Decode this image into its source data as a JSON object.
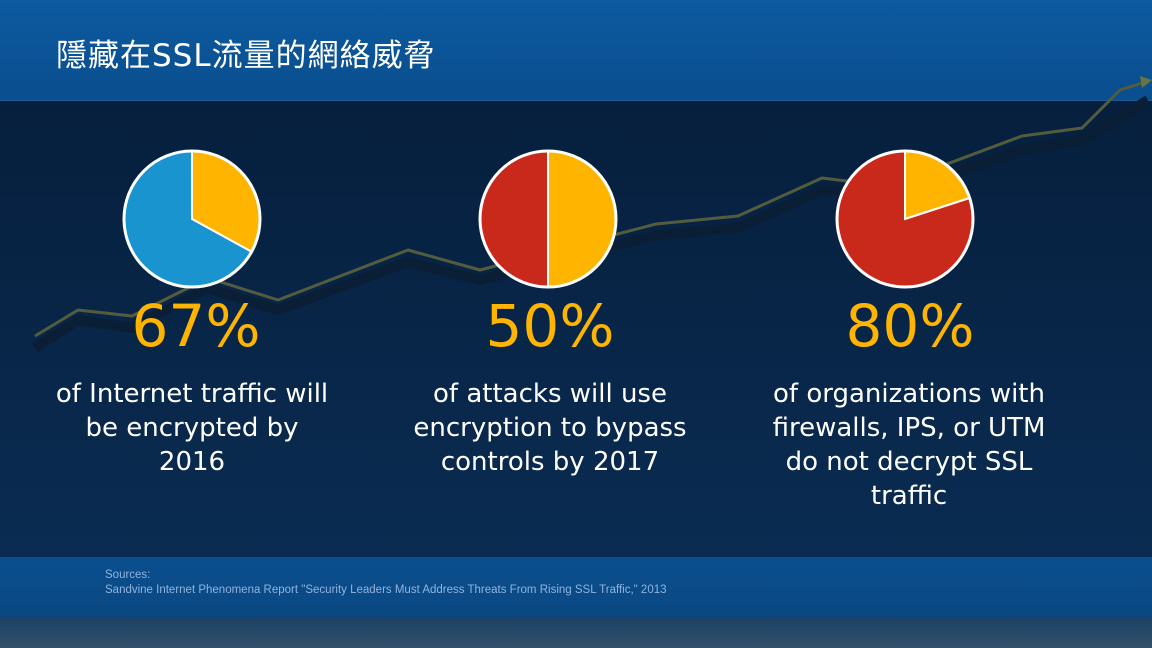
{
  "slide": {
    "title": "隱藏在SSL流量的網絡威脅"
  },
  "colors": {
    "blue": "#1a94cf",
    "yellow": "#ffb400",
    "red": "#c8291a",
    "trend_line": "#4f5a3e"
  },
  "chart_data": [
    {
      "type": "pie",
      "stat_label": "67%",
      "description": "of Internet traffic will be encrypted by 2016",
      "slices": [
        {
          "value": 67,
          "color": "#1a94cf"
        },
        {
          "value": 33,
          "color": "#ffb400"
        }
      ]
    },
    {
      "type": "pie",
      "stat_label": "50%",
      "description": "of attacks will use encryption to bypass controls by 2017",
      "slices": [
        {
          "value": 50,
          "color": "#c8291a"
        },
        {
          "value": 50,
          "color": "#ffb400"
        }
      ]
    },
    {
      "type": "pie",
      "stat_label": "80%",
      "description": "of organizations with firewalls, IPS, or UTM do not decrypt SSL traffic",
      "slices": [
        {
          "value": 80,
          "color": "#c8291a"
        },
        {
          "value": 20,
          "color": "#ffb400"
        }
      ]
    }
  ],
  "sources": {
    "heading": "Sources:",
    "text": "Sandvine Internet Phenomena Report \"Security Leaders Must Address Threats From Rising SSL Traffic,\" 2013"
  }
}
